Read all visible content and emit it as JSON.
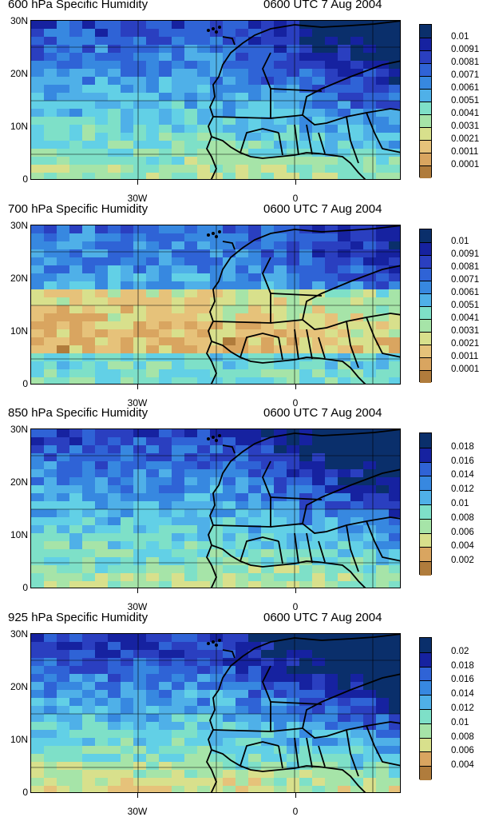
{
  "panels": [
    {
      "title": "600 hPa Specific Humidity",
      "time": "0600 UTC 7 Aug 2004",
      "legend_labels": [
        "0.01",
        "0.0091",
        "0.0081",
        "0.0071",
        "0.0061",
        "0.0051",
        "0.0041",
        "0.0031",
        "0.0021",
        "0.0011",
        "0.0001"
      ],
      "dryness": 0.55
    },
    {
      "title": "700 hPa Specific Humidity",
      "time": "0600 UTC 7 Aug 2004",
      "legend_labels": [
        "0.01",
        "0.0091",
        "0.0081",
        "0.0071",
        "0.0061",
        "0.0051",
        "0.0041",
        "0.0031",
        "0.0021",
        "0.0011",
        "0.0001"
      ],
      "dryness": 0.35
    },
    {
      "title": "850 hPa Specific Humidity",
      "time": "0600 UTC 7 Aug 2004",
      "legend_labels": [
        "0.018",
        "0.016",
        "0.014",
        "0.012",
        "0.01",
        "0.008",
        "0.006",
        "0.004",
        "0.002"
      ],
      "dryness": 0.6
    },
    {
      "title": "925 hPa Specific Humidity",
      "time": "0600 UTC 7 Aug 2004",
      "legend_labels": [
        "0.02",
        "0.018",
        "0.016",
        "0.014",
        "0.012",
        "0.01",
        "0.008",
        "0.006",
        "0.004"
      ],
      "dryness": 0.7
    }
  ],
  "axes": {
    "y_labels": [
      "30N",
      "20N",
      "10N",
      "0"
    ],
    "x_labels": [
      "30W",
      "0"
    ]
  },
  "colors": {
    "scale": [
      "#0a2f6b",
      "#1622a0",
      "#2a3fc0",
      "#2f63d6",
      "#3788e0",
      "#4fb0e8",
      "#62d0e6",
      "#7ee0c8",
      "#a6e4a8",
      "#d8e08c",
      "#e6c27a",
      "#d9a560",
      "#b07c3c"
    ]
  }
}
